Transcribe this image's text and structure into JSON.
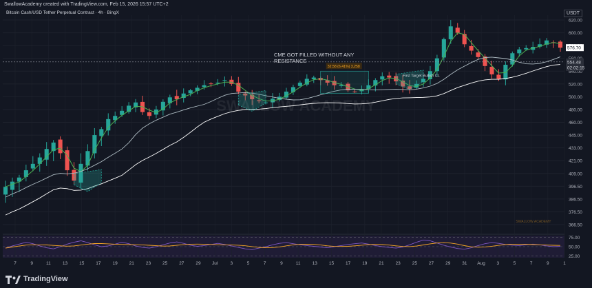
{
  "header": {
    "created": "SwallowAcademy created with TradingView.com, Feb 15, 2026 15:57 UTC+2",
    "symbol": "Bitcoin Cash/USD Tether Perpetual Contract · 4h · BingX",
    "currency": "USDT"
  },
  "annotations": {
    "cme_line1": "CME GOT FILLED WITHOUT ANY",
    "cme_line2": "RESISTANCE",
    "target_label": "First Target Bullish CL",
    "measure_label": "32.58 (6.41%) 3,258",
    "watermark": "SWALLOW ACADEMY",
    "watermark_small": "SWALLOW ACADEMY"
  },
  "price_tags": {
    "last": "576.70",
    "level": "554.48",
    "countdown": "02:02:15"
  },
  "footer": {
    "brand": "TradingView"
  },
  "colors": {
    "background": "#131722",
    "up": "#26a69a",
    "down": "#ef5350",
    "up_alt": "#2e7d32",
    "down_alt": "#b71c1c",
    "ma_fast": "#4caf50",
    "ma_mid": "#b0bec5",
    "ma_slow": "#ffffff",
    "rsi_line": "#7e57c2",
    "rsi_ma": "#f9a825",
    "rsi_band": "#2a2145",
    "zone": "#26a69a",
    "grid": "#1e222d"
  },
  "chart_data": {
    "type": "candlestick",
    "timeframe": "4h",
    "y_ticks": [
      620.0,
      600.0,
      580.0,
      560.0,
      540.0,
      520.0,
      500.0,
      480.0,
      460.0,
      445.0,
      433.0,
      421.0,
      409.0,
      396.5,
      386.5,
      376.5,
      366.5
    ],
    "x_ticks": [
      "7",
      "9",
      "11",
      "13",
      "15",
      "17",
      "19",
      "21",
      "23",
      "25",
      "27",
      "29",
      "Jul",
      "3",
      "5",
      "7",
      "9",
      "11",
      "13",
      "15",
      "17",
      "19",
      "21",
      "23",
      "25",
      "27",
      "29",
      "31",
      "Aug",
      "3",
      "5",
      "7",
      "9",
      "1"
    ],
    "ylim": [
      360,
      630
    ],
    "close_series": [
      396,
      401,
      405,
      412,
      418,
      424,
      432,
      438,
      428,
      412,
      402,
      418,
      430,
      445,
      452,
      465,
      470,
      478,
      486,
      491,
      476,
      470,
      480,
      492,
      499,
      496,
      505,
      510,
      514,
      518,
      520,
      522,
      526,
      520,
      508,
      502,
      496,
      493,
      491,
      497,
      500,
      508,
      515,
      522,
      528,
      530,
      526,
      522,
      518,
      518,
      510,
      508,
      512,
      518,
      526,
      532,
      530,
      524,
      516,
      512,
      520,
      528,
      540,
      560,
      590,
      610,
      600,
      582,
      572,
      562,
      548,
      535,
      528,
      550,
      568,
      574,
      576,
      578,
      582,
      588,
      584,
      576.7
    ],
    "rsi": {
      "panel_ticks": [
        75.0,
        50.0,
        25.0
      ],
      "ylim": [
        20,
        80
      ],
      "values": [
        46,
        52,
        57,
        62,
        58,
        52,
        47,
        44,
        50,
        57,
        62,
        66,
        61,
        55,
        50,
        52,
        57,
        62,
        58,
        52,
        48,
        46,
        50,
        55,
        60,
        63,
        59,
        54,
        51,
        53,
        56,
        59,
        56,
        52,
        48,
        44,
        42,
        46,
        50,
        55,
        59,
        61,
        58,
        55,
        53,
        51,
        49,
        47,
        50,
        53,
        56,
        58,
        60,
        57,
        53,
        50,
        48,
        46,
        49,
        55,
        62,
        68,
        66,
        60,
        54,
        49,
        45,
        43,
        47,
        53,
        58,
        61,
        59,
        56,
        54,
        53,
        55,
        57,
        55,
        52,
        50,
        51
      ]
    }
  }
}
